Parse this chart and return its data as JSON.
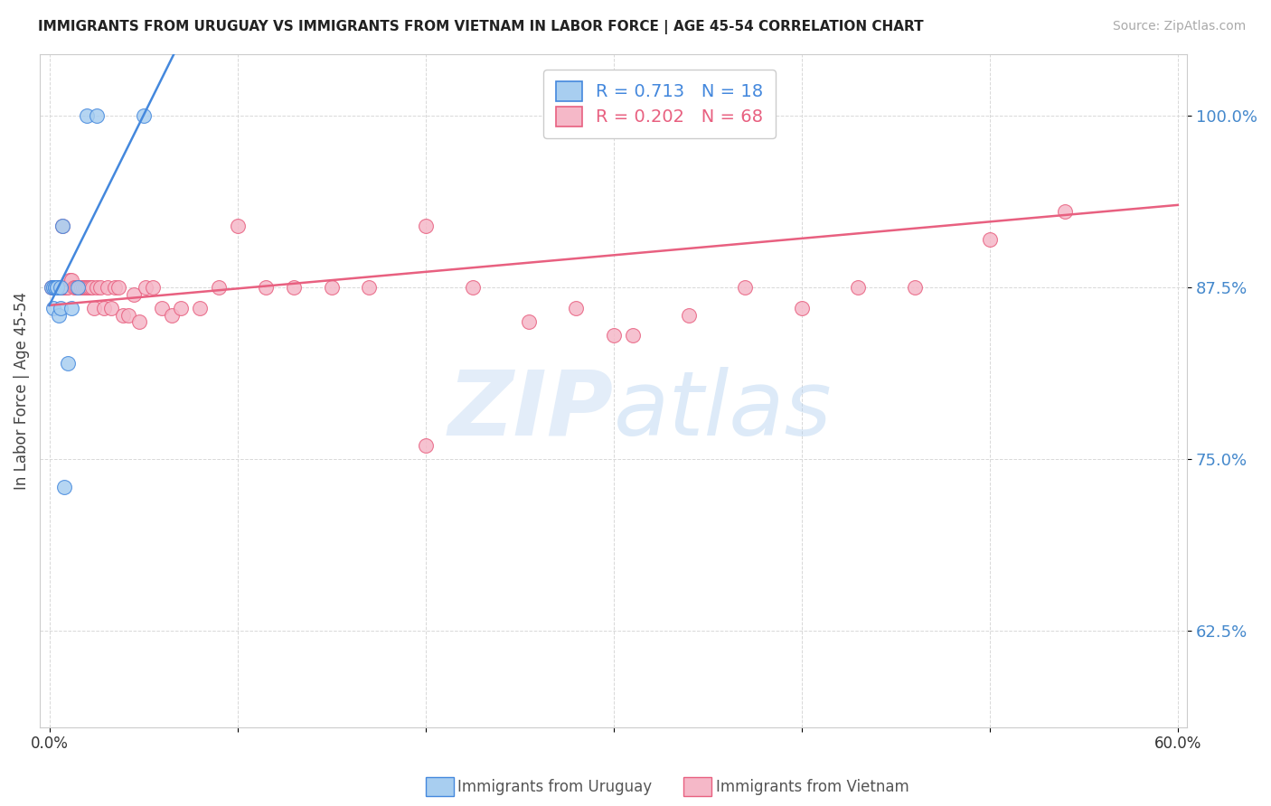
{
  "title": "IMMIGRANTS FROM URUGUAY VS IMMIGRANTS FROM VIETNAM IN LABOR FORCE | AGE 45-54 CORRELATION CHART",
  "source": "Source: ZipAtlas.com",
  "ylabel": "In Labor Force | Age 45-54",
  "xlim": [
    -0.005,
    0.605
  ],
  "ylim": [
    0.555,
    1.045
  ],
  "yticks": [
    0.625,
    0.75,
    0.875,
    1.0
  ],
  "ytick_labels": [
    "62.5%",
    "75.0%",
    "87.5%",
    "100.0%"
  ],
  "xticks": [
    0.0,
    0.1,
    0.2,
    0.3,
    0.4,
    0.5,
    0.6
  ],
  "xtick_labels": [
    "0.0%",
    "",
    "",
    "",
    "",
    "",
    "60.0%"
  ],
  "background_color": "#ffffff",
  "grid_color": "#d8d8d8",
  "watermark_text": "ZIPatlas",
  "uruguay_color": "#a8cef0",
  "vietnam_color": "#f5b8c8",
  "uruguay_line_color": "#4488dd",
  "vietnam_line_color": "#e86080",
  "uruguay_R": 0.713,
  "uruguay_N": 18,
  "vietnam_R": 0.202,
  "vietnam_N": 68,
  "legend_label_uruguay": "Immigrants from Uruguay",
  "legend_label_vietnam": "Immigrants from Vietnam",
  "uruguay_x": [
    0.001,
    0.002,
    0.002,
    0.003,
    0.003,
    0.004,
    0.004,
    0.005,
    0.006,
    0.006,
    0.007,
    0.008,
    0.01,
    0.012,
    0.015,
    0.02,
    0.025,
    0.05
  ],
  "uruguay_y": [
    0.875,
    0.875,
    0.86,
    0.875,
    0.875,
    0.875,
    0.875,
    0.855,
    0.86,
    0.875,
    0.92,
    0.73,
    0.82,
    0.86,
    0.875,
    1.0,
    1.0,
    1.0
  ],
  "vietnam_x": [
    0.001,
    0.002,
    0.002,
    0.003,
    0.003,
    0.004,
    0.004,
    0.005,
    0.005,
    0.005,
    0.006,
    0.007,
    0.007,
    0.008,
    0.009,
    0.009,
    0.01,
    0.011,
    0.012,
    0.013,
    0.014,
    0.015,
    0.016,
    0.017,
    0.018,
    0.019,
    0.02,
    0.021,
    0.022,
    0.023,
    0.024,
    0.025,
    0.027,
    0.029,
    0.031,
    0.033,
    0.035,
    0.037,
    0.039,
    0.042,
    0.045,
    0.048,
    0.051,
    0.055,
    0.06,
    0.065,
    0.07,
    0.08,
    0.09,
    0.1,
    0.115,
    0.13,
    0.15,
    0.17,
    0.2,
    0.225,
    0.255,
    0.28,
    0.31,
    0.34,
    0.37,
    0.4,
    0.43,
    0.46,
    0.5,
    0.54,
    0.2,
    0.3
  ],
  "vietnam_y": [
    0.875,
    0.875,
    0.875,
    0.875,
    0.875,
    0.875,
    0.875,
    0.875,
    0.875,
    0.875,
    0.875,
    0.92,
    0.875,
    0.875,
    0.875,
    0.875,
    0.875,
    0.88,
    0.88,
    0.875,
    0.875,
    0.875,
    0.875,
    0.875,
    0.875,
    0.875,
    0.875,
    0.875,
    0.875,
    0.875,
    0.86,
    0.875,
    0.875,
    0.86,
    0.875,
    0.86,
    0.875,
    0.875,
    0.855,
    0.855,
    0.87,
    0.85,
    0.875,
    0.875,
    0.86,
    0.855,
    0.86,
    0.86,
    0.875,
    0.92,
    0.875,
    0.875,
    0.875,
    0.875,
    0.92,
    0.875,
    0.85,
    0.86,
    0.84,
    0.855,
    0.875,
    0.86,
    0.875,
    0.875,
    0.91,
    0.93,
    0.76,
    0.84
  ]
}
